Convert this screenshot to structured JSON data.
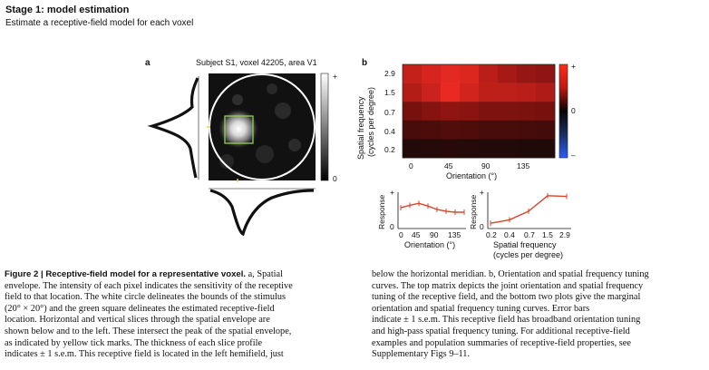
{
  "header": {
    "title": "Stage 1: model estimation",
    "subtitle": "Estimate a receptive-field model for each voxel"
  },
  "panel_a": {
    "letter": "a",
    "title": "Subject S1, voxel 42205, area V1",
    "colorbar_top": "+",
    "colorbar_bottom": "0"
  },
  "panel_b": {
    "letter": "b",
    "ylabel_line1": "Spatial frequency",
    "ylabel_line2": "(cycles per degree)",
    "xlabel": "Orientation (°)",
    "colorbar_top": "+",
    "colorbar_mid": "0",
    "colorbar_bottom": "–",
    "sf_ticks": [
      "2.9",
      "1.5",
      "0.7",
      "0.4",
      "0.2"
    ],
    "ori_ticks": [
      "0",
      "45",
      "90",
      "135"
    ]
  },
  "orientation_tuning": {
    "xlabel": "Orientation (°)",
    "ylabel": "Response",
    "ytop": "+",
    "ybottom": "0",
    "ticks": [
      "0",
      "45",
      "90",
      "135"
    ]
  },
  "sf_tuning": {
    "xlabel_line1": "Spatial frequency",
    "xlabel_line2": "(cycles per degree)",
    "ylabel": "Response",
    "ytop": "+",
    "ybottom": "0",
    "ticks": [
      "0.2",
      "0.4",
      "0.7",
      "1.5",
      "2.9"
    ]
  },
  "caption": {
    "lead": "Figure 2 | Receptive-field model for a representative voxel.",
    "col1": [
      "a, Spatial",
      "envelope. The intensity of each pixel indicates the sensitivity of the receptive",
      "field to that location. The white circle delineates the bounds of the stimulus",
      "(20° × 20°) and the green square delineates the estimated receptive-field",
      "location. Horizontal and vertical slices through the spatial envelope are",
      "shown below and to the left. These intersect the peak of the spatial envelope,",
      "as indicated by yellow tick marks. The thickness of each slice profile",
      "indicates ± 1 s.e.m. This receptive field is located in the left hemifield, just"
    ],
    "col2": [
      "below the horizontal meridian. b, Orientation and spatial frequency tuning",
      "curves. The top matrix depicts the joint orientation and spatial frequency",
      "tuning of the receptive field, and the bottom two plots give the marginal",
      "orientation and spatial frequency tuning curves. Error bars",
      "indicate ± 1 s.e.m. This receptive field has broadband orientation tuning",
      "and high-pass spatial frequency tuning. For additional receptive-field",
      "examples and population summaries of receptive-field properties, see",
      "Supplementary Figs 9–11."
    ]
  },
  "chart_data": [
    {
      "type": "heatmap",
      "rows": [
        "2.9",
        "1.5",
        "0.7",
        "0.4",
        "0.2"
      ],
      "columns": [
        "0",
        "22.5",
        "45",
        "67.5",
        "90",
        "112.5",
        "135",
        "157.5"
      ],
      "values": [
        [
          0.75,
          0.82,
          0.88,
          0.85,
          0.7,
          0.62,
          0.55,
          0.52
        ],
        [
          0.68,
          0.78,
          0.9,
          0.8,
          0.72,
          0.72,
          0.7,
          0.66
        ],
        [
          0.42,
          0.48,
          0.52,
          0.5,
          0.45,
          0.45,
          0.44,
          0.42
        ],
        [
          0.22,
          0.24,
          0.26,
          0.25,
          0.22,
          0.22,
          0.21,
          0.2
        ],
        [
          0.06,
          0.07,
          0.08,
          0.07,
          0.06,
          0.06,
          0.05,
          0.05
        ]
      ],
      "xlabel": "Orientation (°)",
      "ylabel": "Spatial frequency (cycles per degree)"
    },
    {
      "type": "line",
      "x": [
        0,
        22.5,
        45,
        67.5,
        90,
        112.5,
        135,
        157.5
      ],
      "y": [
        0.55,
        0.62,
        0.68,
        0.6,
        0.5,
        0.45,
        0.42,
        0.42
      ],
      "xlabel": "Orientation (°)",
      "ylabel": "Response",
      "color": "#d8452b"
    },
    {
      "type": "line",
      "x": [
        0.2,
        0.4,
        0.7,
        1.5,
        2.9
      ],
      "y": [
        0.1,
        0.2,
        0.45,
        0.9,
        0.88
      ],
      "xlabel": "Spatial frequency (cycles per degree)",
      "ylabel": "Response",
      "color": "#d8452b"
    }
  ]
}
